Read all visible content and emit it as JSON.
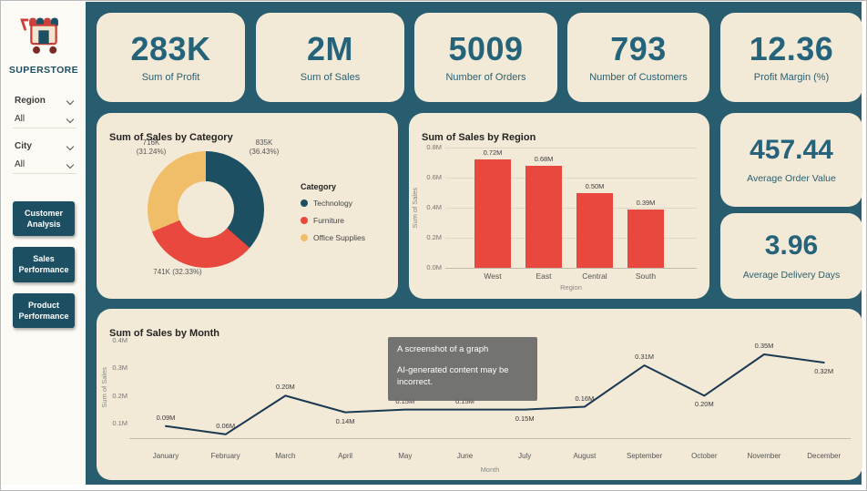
{
  "brand": {
    "name": "SUPERSTORE"
  },
  "sidebar": {
    "filters": [
      {
        "label": "Region",
        "value": "All"
      },
      {
        "label": "City",
        "value": "All"
      }
    ],
    "nav": [
      {
        "label": "Customer Analysis"
      },
      {
        "label": "Sales Performance"
      },
      {
        "label": "Product Performance"
      }
    ]
  },
  "kpi_cards": [
    {
      "value": "283K",
      "label": "Sum of Profit"
    },
    {
      "value": "2M",
      "label": "Sum of Sales"
    },
    {
      "value": "5009",
      "label": "Number of Orders"
    },
    {
      "value": "793",
      "label": "Number of Customers"
    },
    {
      "value": "12.36",
      "label": "Profit Margin (%)"
    }
  ],
  "side_cards": [
    {
      "value": "457.44",
      "label": "Average Order Value"
    },
    {
      "value": "3.96",
      "label": "Average Delivery Days"
    }
  ],
  "overlay": {
    "line1": "A screenshot of a graph",
    "line2": "AI-generated content may be incorrect."
  },
  "colors": {
    "background": "#285d6f",
    "card": "#f2e9d7",
    "accent_dark": "#1d4f63",
    "red": "#e8483d",
    "yellow": "#f0bd68",
    "line": "#1b3a52"
  },
  "chart_data": [
    {
      "type": "pie",
      "title": "Sum of Sales by Category",
      "legend_title": "Category",
      "legend_position": "right",
      "slices": [
        {
          "name": "Technology",
          "value": "835K",
          "pct_label": "(36.43%)",
          "percent": 36.43,
          "color": "#1d4f63"
        },
        {
          "name": "Furniture",
          "value": "741K",
          "pct_label": "(32.33%)",
          "percent": 32.33,
          "color": "#e8483d"
        },
        {
          "name": "Office Supplies",
          "value": "716K",
          "pct_label": "(31.24%)",
          "percent": 31.24,
          "color": "#f0bd68"
        }
      ]
    },
    {
      "type": "bar",
      "title": "Sum of Sales by Region",
      "xlabel": "Region",
      "ylabel": "Sum of Sales",
      "categories": [
        "West",
        "East",
        "Central",
        "South"
      ],
      "values": [
        0.72,
        0.68,
        0.5,
        0.39
      ],
      "value_labels": [
        "0.72M",
        "0.68M",
        "0.50M",
        "0.39M"
      ],
      "yticks": [
        "0.0M",
        "0.2M",
        "0.4M",
        "0.6M",
        "0.8M"
      ],
      "ylim": [
        0,
        0.8
      ],
      "grid": true,
      "bar_color": "#e8483d"
    },
    {
      "type": "line",
      "title": "Sum of Sales by Month",
      "xlabel": "Month",
      "ylabel": "Sum of Sales",
      "categories": [
        "January",
        "February",
        "March",
        "April",
        "May",
        "June",
        "July",
        "August",
        "September",
        "October",
        "November",
        "December"
      ],
      "values": [
        0.09,
        0.06,
        0.2,
        0.14,
        0.15,
        0.15,
        0.15,
        0.16,
        0.31,
        0.2,
        0.35,
        0.32
      ],
      "value_labels": [
        "0.09M",
        "0.06M",
        "0.20M",
        "0.14M",
        "0.15M",
        "0.15M",
        "0.15M",
        "0.16M",
        "0.31M",
        "0.20M",
        "0.35M",
        "0.32M"
      ],
      "yticks": [
        "0.1M",
        "0.2M",
        "0.3M",
        "0.4M"
      ],
      "ylim": [
        0,
        0.4
      ],
      "grid": false,
      "line_color": "#1b3a52"
    }
  ]
}
